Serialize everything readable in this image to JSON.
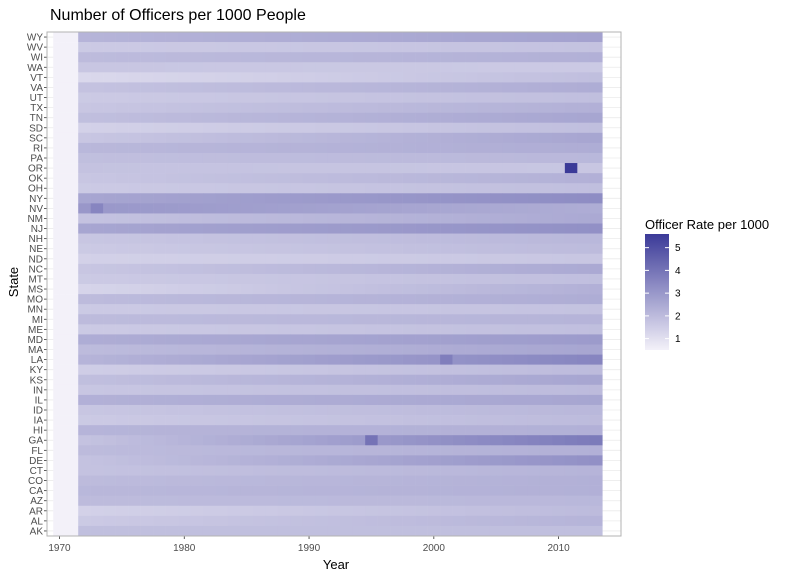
{
  "chart_data": {
    "type": "heatmap",
    "title": "Number of Officers per 1000 People",
    "xlabel": "Year",
    "ylabel": "State",
    "xlim": [
      1969,
      2015
    ],
    "x_ticks": [
      1970,
      1980,
      1990,
      2000,
      2010
    ],
    "years": [
      1970,
      1971,
      1972,
      1973,
      1974,
      1975,
      1976,
      1977,
      1978,
      1979,
      1980,
      1981,
      1982,
      1983,
      1984,
      1985,
      1986,
      1987,
      1988,
      1989,
      1990,
      1991,
      1992,
      1993,
      1994,
      1995,
      1996,
      1997,
      1998,
      1999,
      2000,
      2001,
      2002,
      2003,
      2004,
      2005,
      2006,
      2007,
      2008,
      2009,
      2010,
      2011,
      2012,
      2013
    ],
    "states_top_to_bottom": [
      "WY",
      "WV",
      "WI",
      "WA",
      "VT",
      "VA",
      "UT",
      "TX",
      "TN",
      "SD",
      "SC",
      "RI",
      "PA",
      "OR",
      "OK",
      "OH",
      "NY",
      "NV",
      "NM",
      "NJ",
      "NH",
      "NE",
      "ND",
      "NC",
      "MT",
      "MS",
      "MO",
      "MN",
      "MI",
      "ME",
      "MD",
      "MA",
      "LA",
      "KY",
      "KS",
      "IN",
      "IL",
      "ID",
      "IA",
      "HI",
      "GA",
      "FL",
      "DE",
      "CT",
      "CO",
      "CA",
      "AZ",
      "AR",
      "AL",
      "AK"
    ],
    "state_profiles": {
      "WY": {
        "early": 2.2,
        "late": 2.7
      },
      "WV": {
        "early": 1.6,
        "late": 1.8
      },
      "WI": {
        "early": 2.0,
        "late": 2.3
      },
      "WA": {
        "early": 1.7,
        "late": 1.6
      },
      "VT": {
        "early": 1.2,
        "late": 1.9
      },
      "VA": {
        "early": 1.8,
        "late": 2.4
      },
      "UT": {
        "early": 1.6,
        "late": 1.9
      },
      "TX": {
        "early": 1.7,
        "late": 2.3
      },
      "TN": {
        "early": 1.9,
        "late": 2.6
      },
      "SD": {
        "early": 1.4,
        "late": 1.9
      },
      "SC": {
        "early": 1.7,
        "late": 2.6
      },
      "RI": {
        "early": 2.1,
        "late": 2.4
      },
      "PA": {
        "early": 1.9,
        "late": 2.1
      },
      "OR": {
        "early": 1.8,
        "late": 1.7
      },
      "OK": {
        "early": 1.7,
        "late": 2.3
      },
      "OH": {
        "early": 1.6,
        "late": 1.9
      },
      "NY": {
        "early": 2.6,
        "late": 3.3
      },
      "NV": {
        "early": 3.0,
        "late": 2.4
      },
      "NM": {
        "early": 1.8,
        "late": 2.5
      },
      "NJ": {
        "early": 2.6,
        "late": 3.2
      },
      "NH": {
        "early": 1.7,
        "late": 2.1
      },
      "NE": {
        "early": 1.6,
        "late": 2.0
      },
      "ND": {
        "early": 1.4,
        "late": 1.7
      },
      "NC": {
        "early": 1.7,
        "late": 2.5
      },
      "MT": {
        "early": 1.6,
        "late": 1.9
      },
      "MS": {
        "early": 1.3,
        "late": 2.3
      },
      "MO": {
        "early": 2.0,
        "late": 2.4
      },
      "MN": {
        "early": 1.6,
        "late": 1.8
      },
      "MI": {
        "early": 2.0,
        "late": 2.2
      },
      "ME": {
        "early": 1.6,
        "late": 1.9
      },
      "MD": {
        "early": 2.4,
        "late": 2.9
      },
      "MA": {
        "early": 2.0,
        "late": 2.6
      },
      "LA": {
        "early": 2.2,
        "late": 3.5
      },
      "KY": {
        "early": 1.5,
        "late": 2.0
      },
      "KS": {
        "early": 1.9,
        "late": 2.6
      },
      "IN": {
        "early": 1.7,
        "late": 2.0
      },
      "IL": {
        "early": 2.3,
        "late": 2.6
      },
      "ID": {
        "early": 1.7,
        "late": 2.1
      },
      "IA": {
        "early": 1.6,
        "late": 2.0
      },
      "HI": {
        "early": 2.2,
        "late": 2.3
      },
      "GA": {
        "early": 1.8,
        "late": 3.8
      },
      "FL": {
        "early": 2.0,
        "late": 2.3
      },
      "DE": {
        "early": 1.8,
        "late": 3.2
      },
      "CT": {
        "early": 1.8,
        "late": 2.2
      },
      "CO": {
        "early": 2.0,
        "late": 2.3
      },
      "CA": {
        "early": 2.1,
        "late": 2.3
      },
      "AZ": {
        "early": 2.0,
        "late": 2.1
      },
      "AR": {
        "early": 1.4,
        "late": 2.0
      },
      "AL": {
        "early": 1.6,
        "late": 2.2
      },
      "AK": {
        "early": 1.9,
        "late": 1.9
      }
    },
    "notable_cells": [
      {
        "state": "OR",
        "year": 2011,
        "value": 5.6
      },
      {
        "state": "NV",
        "year": 1973,
        "value": 3.5
      },
      {
        "state": "GA",
        "year": 1995,
        "value": 4.0
      },
      {
        "state": "LA",
        "year": 2001,
        "value": 3.7
      }
    ],
    "legend": {
      "title": "Officer Rate per 1000",
      "position": "right",
      "range": [
        0.5,
        5.6
      ],
      "ticks": [
        1,
        2,
        3,
        4,
        5
      ],
      "low_color": "#f3f1f9",
      "high_color": "#3b3a98"
    },
    "grid": true,
    "panel_border_color": "#b3b3b3",
    "grid_color": "#ebebeb"
  }
}
